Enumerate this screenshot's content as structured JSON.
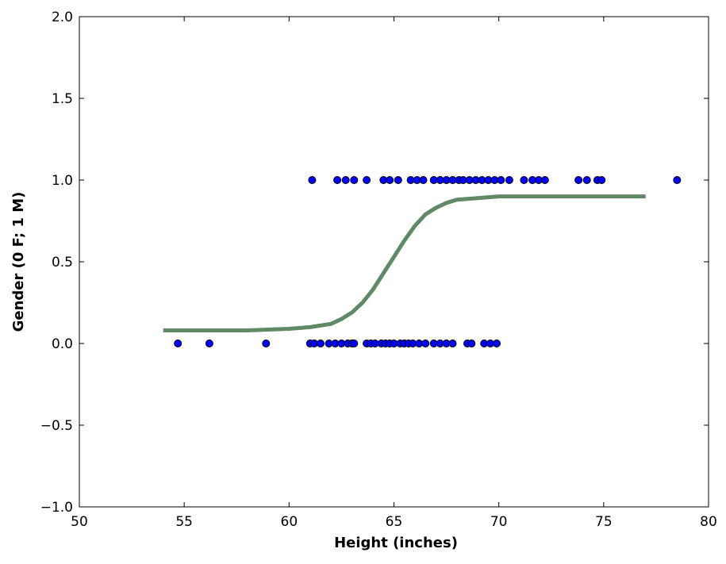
{
  "chart_data": {
    "type": "scatter",
    "title": "",
    "xlabel": "Height (inches)",
    "ylabel": "Gender (0 F; 1 M)",
    "xlim": [
      50,
      80
    ],
    "ylim": [
      -1.0,
      2.0
    ],
    "xticks": [
      50,
      55,
      60,
      65,
      70,
      75,
      80
    ],
    "xtick_labels": [
      "50",
      "55",
      "60",
      "65",
      "70",
      "75",
      "80"
    ],
    "yticks": [
      -1.0,
      -0.5,
      0.0,
      0.5,
      1.0,
      1.5,
      2.0
    ],
    "ytick_labels": [
      "−1.0",
      "−0.5",
      "0.0",
      "0.5",
      "1.0",
      "1.5",
      "2.0"
    ],
    "grid": false,
    "legend": "none",
    "series": [
      {
        "kind": "scatter",
        "color": "#0000ff",
        "points": [
          {
            "x": 54.7,
            "y": 0
          },
          {
            "x": 56.2,
            "y": 0
          },
          {
            "x": 58.9,
            "y": 0
          },
          {
            "x": 61.0,
            "y": 0
          },
          {
            "x": 61.2,
            "y": 0
          },
          {
            "x": 61.5,
            "y": 0
          },
          {
            "x": 61.9,
            "y": 0
          },
          {
            "x": 62.2,
            "y": 0
          },
          {
            "x": 62.5,
            "y": 0
          },
          {
            "x": 62.8,
            "y": 0
          },
          {
            "x": 63.0,
            "y": 0
          },
          {
            "x": 63.1,
            "y": 0
          },
          {
            "x": 63.7,
            "y": 0
          },
          {
            "x": 63.9,
            "y": 0
          },
          {
            "x": 64.1,
            "y": 0
          },
          {
            "x": 64.4,
            "y": 0
          },
          {
            "x": 64.6,
            "y": 0
          },
          {
            "x": 64.8,
            "y": 0
          },
          {
            "x": 65.0,
            "y": 0
          },
          {
            "x": 65.3,
            "y": 0
          },
          {
            "x": 65.5,
            "y": 0
          },
          {
            "x": 65.7,
            "y": 0
          },
          {
            "x": 65.9,
            "y": 0
          },
          {
            "x": 66.2,
            "y": 0
          },
          {
            "x": 66.5,
            "y": 0
          },
          {
            "x": 66.9,
            "y": 0
          },
          {
            "x": 67.2,
            "y": 0
          },
          {
            "x": 67.5,
            "y": 0
          },
          {
            "x": 67.8,
            "y": 0
          },
          {
            "x": 68.5,
            "y": 0
          },
          {
            "x": 68.7,
            "y": 0
          },
          {
            "x": 69.3,
            "y": 0
          },
          {
            "x": 69.6,
            "y": 0
          },
          {
            "x": 69.9,
            "y": 0
          },
          {
            "x": 61.1,
            "y": 1
          },
          {
            "x": 62.3,
            "y": 1
          },
          {
            "x": 62.7,
            "y": 1
          },
          {
            "x": 63.1,
            "y": 1
          },
          {
            "x": 63.7,
            "y": 1
          },
          {
            "x": 64.5,
            "y": 1
          },
          {
            "x": 64.8,
            "y": 1
          },
          {
            "x": 65.2,
            "y": 1
          },
          {
            "x": 65.8,
            "y": 1
          },
          {
            "x": 66.1,
            "y": 1
          },
          {
            "x": 66.4,
            "y": 1
          },
          {
            "x": 66.9,
            "y": 1
          },
          {
            "x": 67.2,
            "y": 1
          },
          {
            "x": 67.5,
            "y": 1
          },
          {
            "x": 67.8,
            "y": 1
          },
          {
            "x": 68.1,
            "y": 1
          },
          {
            "x": 68.3,
            "y": 1
          },
          {
            "x": 68.6,
            "y": 1
          },
          {
            "x": 68.9,
            "y": 1
          },
          {
            "x": 69.2,
            "y": 1
          },
          {
            "x": 69.5,
            "y": 1
          },
          {
            "x": 69.8,
            "y": 1
          },
          {
            "x": 70.1,
            "y": 1
          },
          {
            "x": 70.5,
            "y": 1
          },
          {
            "x": 71.2,
            "y": 1
          },
          {
            "x": 71.6,
            "y": 1
          },
          {
            "x": 71.9,
            "y": 1
          },
          {
            "x": 72.2,
            "y": 1
          },
          {
            "x": 73.8,
            "y": 1
          },
          {
            "x": 74.2,
            "y": 1
          },
          {
            "x": 74.7,
            "y": 1
          },
          {
            "x": 74.9,
            "y": 1
          },
          {
            "x": 78.5,
            "y": 1
          }
        ]
      },
      {
        "kind": "line",
        "color": "#5f8a65",
        "x": [
          54,
          56,
          58,
          60,
          61,
          62,
          62.5,
          63,
          63.5,
          64,
          64.5,
          65,
          65.5,
          66,
          66.5,
          67,
          67.5,
          68,
          69,
          70,
          72,
          74,
          77
        ],
        "y": [
          0.08,
          0.08,
          0.08,
          0.09,
          0.1,
          0.12,
          0.15,
          0.19,
          0.25,
          0.33,
          0.43,
          0.53,
          0.63,
          0.72,
          0.79,
          0.83,
          0.86,
          0.88,
          0.89,
          0.9,
          0.9,
          0.9,
          0.9
        ]
      }
    ]
  }
}
